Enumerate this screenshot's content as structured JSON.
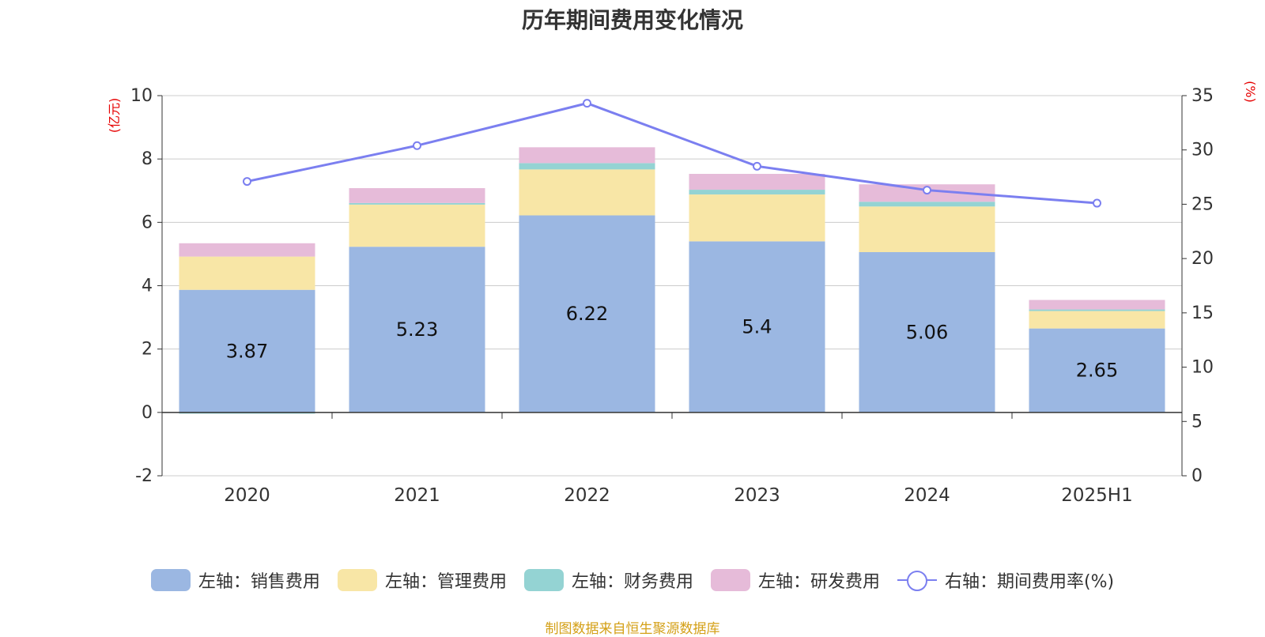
{
  "chart_data": {
    "type": "bar",
    "title": "历年期间费用变化情况",
    "categories": [
      "2020",
      "2021",
      "2022",
      "2023",
      "2024",
      "2025H1"
    ],
    "y_left_label": "(亿元)",
    "y_right_label": "(%)",
    "y_left_range": [
      -2,
      10
    ],
    "y_left_ticks": [
      "10",
      "8",
      "6",
      "4",
      "2",
      "0",
      "-2"
    ],
    "y_right_range": [
      0,
      35
    ],
    "y_right_ticks": [
      "35",
      "30",
      "25",
      "20",
      "15",
      "10",
      "5",
      "0"
    ],
    "grid": true,
    "legend_position": "bottom",
    "series": [
      {
        "name": "左轴：销售费用",
        "type": "bar",
        "stack": "total",
        "color": "#9bb7e2",
        "values": [
          3.87,
          5.23,
          6.22,
          5.4,
          5.06,
          2.65
        ],
        "labels": [
          "3.87",
          "5.23",
          "6.22",
          "5.4",
          "5.06",
          "2.65"
        ]
      },
      {
        "name": "左轴：管理费用",
        "type": "bar",
        "stack": "total",
        "color": "#f8e6a6",
        "values": [
          1.05,
          1.33,
          1.45,
          1.48,
          1.44,
          0.55
        ]
      },
      {
        "name": "左轴：财务费用",
        "type": "bar",
        "stack": "total",
        "color": "#94d3d3",
        "values": [
          -0.04,
          0.05,
          0.2,
          0.15,
          0.15,
          0.05
        ]
      },
      {
        "name": "左轴：研发费用",
        "type": "bar",
        "stack": "total",
        "color": "#e6bbd9",
        "values": [
          0.42,
          0.47,
          0.5,
          0.5,
          0.55,
          0.3
        ]
      },
      {
        "name": "右轴：期间费用率(%)",
        "type": "line",
        "axis": "right",
        "color": "#7b7ff0",
        "values": [
          27.1,
          30.4,
          34.3,
          28.5,
          26.3,
          25.1
        ]
      }
    ]
  },
  "source_text": "制图数据来自恒生聚源数据库"
}
